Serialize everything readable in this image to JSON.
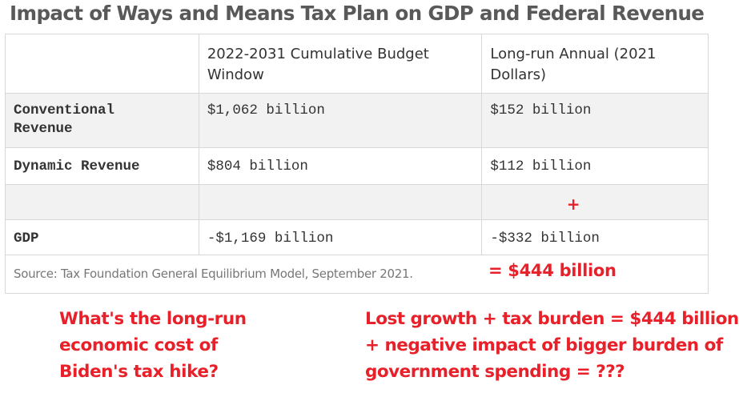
{
  "title": "Impact of Ways and Means Tax Plan on GDP and Federal Revenue",
  "table": {
    "headers": [
      "",
      "2022-2031 Cumulative Budget Window",
      "Long-run Annual (2021 Dollars)"
    ],
    "header_lines": {
      "col1": [
        "2022-2031 Cumulative Budget",
        "Window"
      ],
      "col2": [
        "Long-run Annual (2021",
        "Dollars)"
      ]
    },
    "rows": [
      {
        "label_lines": [
          "Conventional",
          "Revenue"
        ],
        "label": "Conventional Revenue",
        "budget_window": "$1,062 billion",
        "long_run": "$152 billion"
      },
      {
        "label": "Dynamic Revenue",
        "budget_window": "$804 billion",
        "long_run": "$112 billion"
      },
      {
        "label": "",
        "budget_window": "",
        "long_run": "",
        "annotation": "+"
      },
      {
        "label": "GDP",
        "budget_window": "-$1,169 billion",
        "long_run": "-$332 billion"
      }
    ],
    "source": "Source: Tax Foundation General Equilibrium Model, September 2021."
  },
  "annotations": {
    "total": "= $444 billion",
    "question_lines": [
      "What's the long-run",
      "economic cost of",
      "Biden's tax hike?"
    ],
    "answer_lines": [
      "Lost growth + tax burden = $444 billion",
      "+ negative impact of bigger burden of",
      "government spending = ???"
    ]
  },
  "colors": {
    "title": "#595959",
    "annotation_red": "#e8202a",
    "row_shade": "#f2f2f2",
    "text": "#333333",
    "source_text": "#777777"
  }
}
